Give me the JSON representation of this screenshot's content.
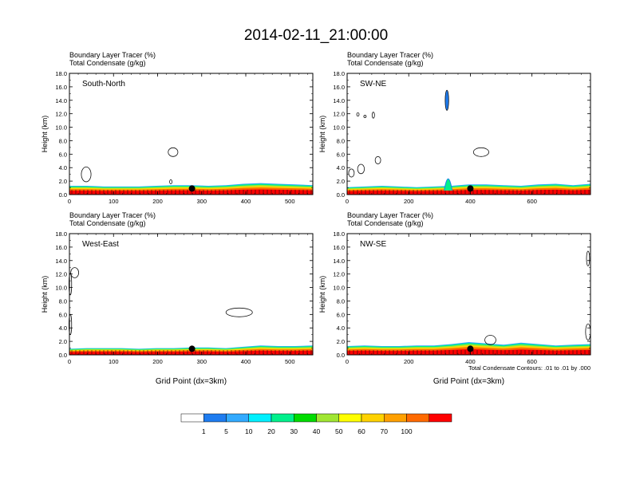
{
  "figure": {
    "title": "2014-02-11_21:00:00",
    "footnote": "Total Condensate Contours: .01 to .01 by .000",
    "xlabel": "Grid Point (dx=3km)",
    "ylabel": "Height (km)"
  },
  "colorbar": {
    "colors": [
      "#ffffff",
      "#1e7cf0",
      "#32aaff",
      "#00f0ff",
      "#00f08c",
      "#00dc00",
      "#a0e632",
      "#ffff00",
      "#ffd200",
      "#ffa000",
      "#ff6a00",
      "#ff0000"
    ],
    "labels": [
      "1",
      "5",
      "10",
      "20",
      "30",
      "40",
      "50",
      "60",
      "70",
      "100"
    ]
  },
  "chart_data": [
    {
      "type": "contour",
      "name": "South-North",
      "field_labels": [
        "Boundary Layer Tracer   (%)",
        "Total Condensate   (g/kg)"
      ],
      "ylabel": "Height (km)",
      "xlabel": "",
      "xlim": [
        0,
        552
      ],
      "ylim": [
        0,
        18
      ],
      "xticks": [
        0,
        100,
        200,
        300,
        400,
        500
      ],
      "yticks": [
        "0.0",
        "2.0",
        "4.0",
        "6.0",
        "8.0",
        "10.0",
        "12.0",
        "14.0",
        "16.0",
        "18.0"
      ],
      "tracer_top_km": [
        1.3,
        1.3,
        1.2,
        1.2,
        1.2,
        1.3,
        1.4,
        1.4,
        1.3,
        1.4,
        1.6,
        1.7,
        1.6,
        1.5,
        1.4
      ],
      "marker": {
        "x": 278,
        "y": 0.9
      },
      "clouds": [
        {
          "x": 235,
          "y": 6.3,
          "w": 22,
          "h": 1.3
        },
        {
          "x": 38,
          "y": 3.0,
          "w": 22,
          "h": 2.2
        },
        {
          "x": 230,
          "y": 1.9,
          "w": 5,
          "h": 0.6
        }
      ]
    },
    {
      "type": "contour",
      "name": "SW-NE",
      "field_labels": [
        "Boundary Layer Tracer   (%)",
        "Total Condensate   (g/kg)"
      ],
      "ylabel": "Height (km)",
      "xlabel": "",
      "xlim": [
        0,
        790
      ],
      "ylim": [
        0,
        18
      ],
      "xticks": [
        0,
        200,
        400,
        600
      ],
      "yticks": [
        "0.0",
        "2.0",
        "4.0",
        "6.0",
        "8.0",
        "10.0",
        "12.0",
        "14.0",
        "16.0",
        "18.0"
      ],
      "tracer_top_km": [
        1.1,
        1.2,
        1.3,
        1.2,
        1.1,
        1.2,
        1.3,
        1.5,
        1.5,
        1.4,
        1.3,
        1.5,
        1.6,
        1.4,
        1.6
      ],
      "marker": {
        "x": 400,
        "y": 0.9
      },
      "clouds": [
        {
          "x": 435,
          "y": 6.3,
          "w": 50,
          "h": 1.3
        },
        {
          "x": 100,
          "y": 5.1,
          "w": 18,
          "h": 1.1
        },
        {
          "x": 45,
          "y": 3.8,
          "w": 22,
          "h": 1.4
        },
        {
          "x": 14,
          "y": 3.2,
          "w": 18,
          "h": 1.2
        },
        {
          "x": 85,
          "y": 11.8,
          "w": 7,
          "h": 0.9
        },
        {
          "x": 35,
          "y": 11.9,
          "w": 4,
          "h": 0.5
        },
        {
          "x": 58,
          "y": 11.6,
          "w": 3,
          "h": 0.3
        }
      ],
      "column": {
        "x": 324,
        "y0": 12.5,
        "y1": 15.5
      },
      "spike": {
        "x": 328,
        "y0": 0.6,
        "y1": 3.6
      }
    },
    {
      "type": "contour",
      "name": "West-East",
      "field_labels": [
        "Boundary Layer Tracer   (%)",
        "Total Condensate   (g/kg)"
      ],
      "ylabel": "Height (km)",
      "xlabel": "Grid Point (dx=3km)",
      "xlim": [
        0,
        552
      ],
      "ylim": [
        0,
        18
      ],
      "xticks": [
        0,
        100,
        200,
        300,
        400,
        500
      ],
      "yticks": [
        "0.0",
        "2.0",
        "4.0",
        "6.0",
        "8.0",
        "10.0",
        "12.0",
        "14.0",
        "16.0",
        "18.0"
      ],
      "tracer_top_km": [
        0.9,
        1.0,
        1.0,
        1.0,
        0.9,
        1.0,
        1.0,
        1.1,
        1.1,
        1.0,
        1.2,
        1.4,
        1.3,
        1.3,
        1.4
      ],
      "marker": {
        "x": 278,
        "y": 0.9
      },
      "clouds": [
        {
          "x": 385,
          "y": 6.3,
          "w": 60,
          "h": 1.3
        },
        {
          "x": 12,
          "y": 12.2,
          "w": 18,
          "h": 1.5
        },
        {
          "x": 2,
          "y": 10.5,
          "w": 6,
          "h": 3.2
        },
        {
          "x": 2,
          "y": 4.5,
          "w": 6,
          "h": 3.0
        }
      ]
    },
    {
      "type": "contour",
      "name": "NW-SE",
      "field_labels": [
        "Boundary Layer Tracer   (%)",
        "Total Condensate   (g/kg)"
      ],
      "ylabel": "Height (km)",
      "xlabel": "Grid Point (dx=3km)",
      "xlim": [
        0,
        790
      ],
      "ylim": [
        0,
        18
      ],
      "xticks": [
        0,
        200,
        400,
        600
      ],
      "yticks": [
        "0.0",
        "2.0",
        "4.0",
        "6.0",
        "8.0",
        "10.0",
        "12.0",
        "14.0",
        "16.0",
        "18.0"
      ],
      "tracer_top_km": [
        1.3,
        1.4,
        1.3,
        1.3,
        1.4,
        1.4,
        1.6,
        1.9,
        1.7,
        1.5,
        1.8,
        1.6,
        1.4,
        1.5,
        1.6
      ],
      "marker": {
        "x": 400,
        "y": 0.9
      },
      "clouds": [
        {
          "x": 465,
          "y": 2.2,
          "w": 36,
          "h": 1.4
        },
        {
          "x": 782,
          "y": 14.3,
          "w": 10,
          "h": 2.2
        },
        {
          "x": 782,
          "y": 3.4,
          "w": 16,
          "h": 2.4
        }
      ]
    }
  ]
}
